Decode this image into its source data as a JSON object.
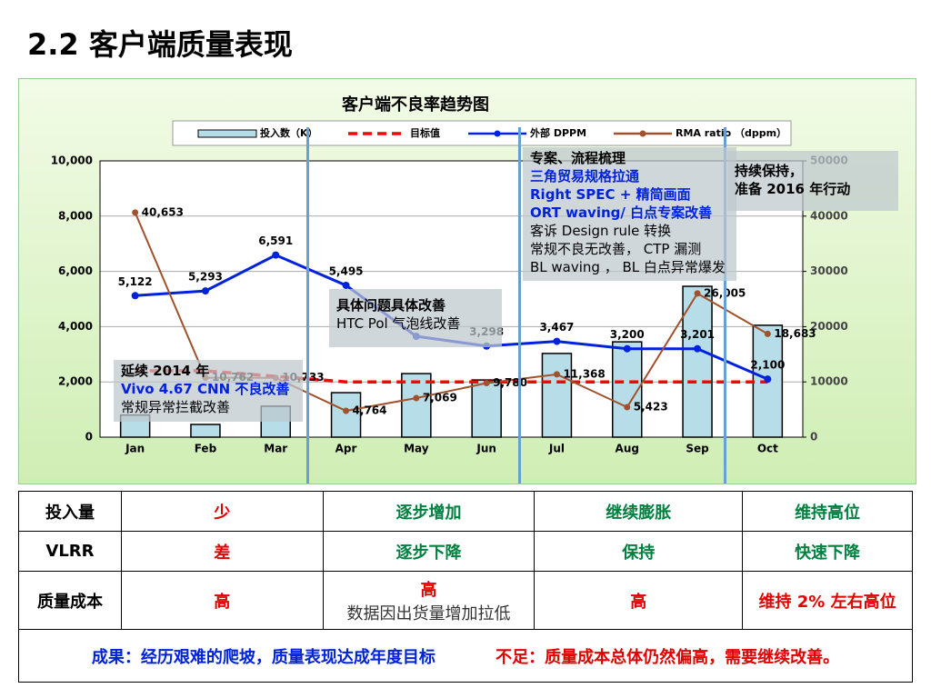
{
  "header": {
    "title": "2.2 客户端质量表现"
  },
  "chart_data": {
    "type": "combo",
    "title": "客户端不良率趋势图",
    "categories": [
      "Jan",
      "Feb",
      "Mar",
      "Apr",
      "May",
      "Jun",
      "Jul",
      "Aug",
      "Sep",
      "Oct"
    ],
    "ylim": [
      0,
      10000
    ],
    "yticks": [
      0,
      {
        "value": 2000,
        "label": "2,000"
      },
      {
        "value": 4000,
        "label": "4,000"
      },
      {
        "value": 6000,
        "label": "6,000"
      },
      {
        "value": 8000,
        "label": "8,000"
      },
      {
        "value": 10000,
        "label": "10,000"
      }
    ],
    "y2lim": [
      0,
      50000
    ],
    "y2ticks": [
      0,
      10000,
      20000,
      30000,
      40000,
      50000
    ],
    "grid": true,
    "series": [
      {
        "name": "投入数（K）",
        "type": "bar",
        "color": "#b7dde8",
        "values": [
          800,
          460,
          1120,
          1610,
          2300,
          2070,
          3030,
          3450,
          5460,
          4050
        ]
      },
      {
        "name": "目标值",
        "type": "line",
        "axis": "y2",
        "dashed": true,
        "color": "#ff0000",
        "values": [
          12000,
          12000,
          11000,
          10000,
          10000,
          10000,
          10000,
          10000,
          10000,
          10000
        ]
      },
      {
        "name": "外部 DPPM",
        "type": "line",
        "markers": true,
        "color": "#0022dd",
        "values": [
          5122,
          5293,
          6591,
          5495,
          3650,
          3298,
          3467,
          3200,
          3201,
          2100
        ],
        "value_labels": [
          "5,122",
          "5,293",
          "6,591",
          "5,495",
          null,
          "3,298",
          "3,467",
          "3,200",
          "3,201",
          "2,100"
        ]
      },
      {
        "name": "RMA ratio （dppm）",
        "type": "line",
        "axis": "y2",
        "markers": true,
        "color": "#a0522d",
        "values": [
          40653,
          10762,
          10733,
          4764,
          7069,
          9780,
          11368,
          5423,
          26005,
          18683
        ],
        "value_labels": [
          "40,653",
          "10,762",
          "10,733",
          "4,764",
          "7,069",
          "9,780",
          "11,368",
          "5,423",
          "26,005",
          "18,683"
        ]
      }
    ]
  },
  "annotations": [
    {
      "lines": [
        "延续 2014 年",
        "Vivo 4.67 CNN  不良改善",
        "常规异常拦截改善"
      ]
    },
    {
      "lines": [
        "具体问题具体改善",
        "HTC Pol 气泡线改善"
      ]
    },
    {
      "lines": [
        "专案、流程梳理",
        "三角贸易规格拉通",
        "Right SPEC + 精简画面",
        "ORT waving/ 白点专案改善",
        "客诉 Design rule 转换",
        "常规不良无改善， CTP 漏测",
        "BL waving ，  BL 白点异常爆发"
      ]
    },
    {
      "lines": [
        "持续保持，",
        "准备 2016 年行动"
      ]
    }
  ],
  "table": {
    "rows": [
      [
        "投入量",
        "少",
        "逐步增加",
        "继续膨胀",
        "维持高位"
      ],
      [
        "VLRR",
        "差",
        "逐步下降",
        "保持",
        "快速下降"
      ],
      [
        "质量成本",
        "高",
        [
          "高",
          "数据因出货量增加拉低"
        ],
        "高",
        "维持 2% 左右高位"
      ]
    ]
  },
  "footer": {
    "result": "成果：经历艰难的爬坡，质量表现达成年度目标",
    "shortfall": "不足：质量成本总体仍然偏高，需要继续改善。"
  }
}
